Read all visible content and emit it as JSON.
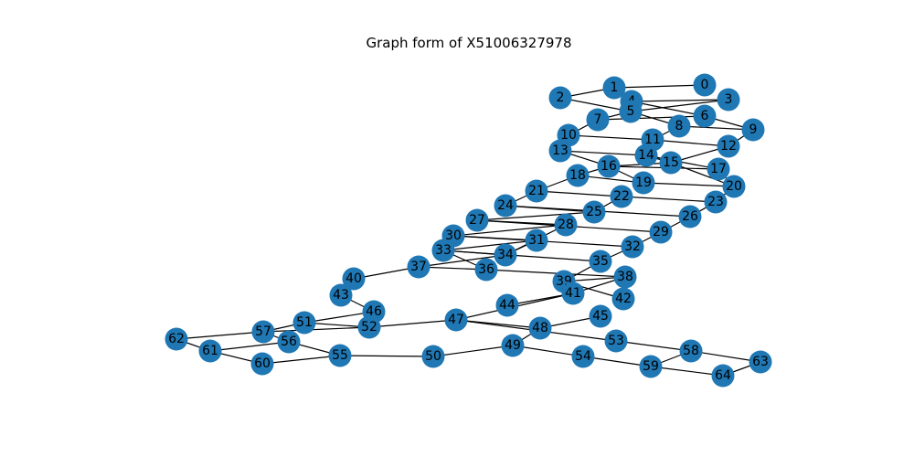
{
  "figure": {
    "title": "Graph form of X51006327978"
  },
  "graph": {
    "node_color": "#1f77b4",
    "edge_color": "#000000",
    "nodes": [
      {
        "id": "0"
      },
      {
        "id": "1"
      },
      {
        "id": "2"
      },
      {
        "id": "3"
      },
      {
        "id": "4"
      },
      {
        "id": "5"
      },
      {
        "id": "6"
      },
      {
        "id": "7"
      },
      {
        "id": "8"
      },
      {
        "id": "9"
      },
      {
        "id": "10"
      },
      {
        "id": "11"
      },
      {
        "id": "12"
      },
      {
        "id": "13"
      },
      {
        "id": "14"
      },
      {
        "id": "15"
      },
      {
        "id": "16"
      },
      {
        "id": "17"
      },
      {
        "id": "18"
      },
      {
        "id": "19"
      },
      {
        "id": "20"
      },
      {
        "id": "21"
      },
      {
        "id": "22"
      },
      {
        "id": "23"
      },
      {
        "id": "24"
      },
      {
        "id": "25"
      },
      {
        "id": "26"
      },
      {
        "id": "27"
      },
      {
        "id": "28"
      },
      {
        "id": "29"
      },
      {
        "id": "30"
      },
      {
        "id": "31"
      },
      {
        "id": "32"
      },
      {
        "id": "33"
      },
      {
        "id": "34"
      },
      {
        "id": "35"
      },
      {
        "id": "36"
      },
      {
        "id": "37"
      },
      {
        "id": "38"
      },
      {
        "id": "39"
      },
      {
        "id": "40"
      },
      {
        "id": "41"
      },
      {
        "id": "42"
      },
      {
        "id": "43"
      },
      {
        "id": "44"
      },
      {
        "id": "45"
      },
      {
        "id": "46"
      },
      {
        "id": "47"
      },
      {
        "id": "48"
      },
      {
        "id": "49"
      },
      {
        "id": "50"
      },
      {
        "id": "51"
      },
      {
        "id": "52"
      },
      {
        "id": "53"
      },
      {
        "id": "54"
      },
      {
        "id": "55"
      },
      {
        "id": "56"
      },
      {
        "id": "57"
      },
      {
        "id": "58"
      },
      {
        "id": "59"
      },
      {
        "id": "60"
      },
      {
        "id": "61"
      },
      {
        "id": "62"
      },
      {
        "id": "63"
      },
      {
        "id": "64"
      }
    ],
    "edges": [
      [
        "1",
        "0"
      ],
      [
        "1",
        "2"
      ],
      [
        "1",
        "4"
      ],
      [
        "2",
        "5"
      ],
      [
        "4",
        "3"
      ],
      [
        "5",
        "3"
      ],
      [
        "5",
        "7"
      ],
      [
        "5",
        "8"
      ],
      [
        "4",
        "6"
      ],
      [
        "7",
        "6"
      ],
      [
        "6",
        "9"
      ],
      [
        "8",
        "9"
      ],
      [
        "7",
        "10"
      ],
      [
        "10",
        "11"
      ],
      [
        "11",
        "8"
      ],
      [
        "11",
        "12"
      ],
      [
        "12",
        "9"
      ],
      [
        "10",
        "13"
      ],
      [
        "13",
        "14"
      ],
      [
        "13",
        "16"
      ],
      [
        "14",
        "17"
      ],
      [
        "15",
        "12"
      ],
      [
        "15",
        "14"
      ],
      [
        "15",
        "16"
      ],
      [
        "15",
        "20"
      ],
      [
        "16",
        "17"
      ],
      [
        "16",
        "18"
      ],
      [
        "16",
        "19"
      ],
      [
        "17",
        "20"
      ],
      [
        "18",
        "21"
      ],
      [
        "18",
        "19"
      ],
      [
        "19",
        "20"
      ],
      [
        "21",
        "22"
      ],
      [
        "21",
        "24"
      ],
      [
        "22",
        "23"
      ],
      [
        "23",
        "20"
      ],
      [
        "24",
        "25"
      ],
      [
        "24",
        "26"
      ],
      [
        "22",
        "25"
      ],
      [
        "26",
        "23"
      ],
      [
        "25",
        "27"
      ],
      [
        "27",
        "28"
      ],
      [
        "27",
        "29"
      ],
      [
        "26",
        "29"
      ],
      [
        "28",
        "30"
      ],
      [
        "28",
        "34"
      ],
      [
        "29",
        "32"
      ],
      [
        "30",
        "31"
      ],
      [
        "30",
        "32"
      ],
      [
        "31",
        "34"
      ],
      [
        "31",
        "33"
      ],
      [
        "32",
        "35"
      ],
      [
        "33",
        "35"
      ],
      [
        "33",
        "34"
      ],
      [
        "33",
        "36"
      ],
      [
        "34",
        "37"
      ],
      [
        "37",
        "36"
      ],
      [
        "37",
        "40"
      ],
      [
        "36",
        "38"
      ],
      [
        "35",
        "39"
      ],
      [
        "39",
        "38"
      ],
      [
        "39",
        "42"
      ],
      [
        "38",
        "41"
      ],
      [
        "41",
        "44"
      ],
      [
        "41",
        "47"
      ],
      [
        "43",
        "46"
      ],
      [
        "46",
        "51"
      ],
      [
        "46",
        "52"
      ],
      [
        "51",
        "52"
      ],
      [
        "51",
        "57"
      ],
      [
        "52",
        "47"
      ],
      [
        "52",
        "57"
      ],
      [
        "47",
        "53"
      ],
      [
        "47",
        "48"
      ],
      [
        "48",
        "45"
      ],
      [
        "48",
        "49"
      ],
      [
        "49",
        "50"
      ],
      [
        "49",
        "54"
      ],
      [
        "50",
        "55"
      ],
      [
        "55",
        "56"
      ],
      [
        "55",
        "60"
      ],
      [
        "56",
        "57"
      ],
      [
        "56",
        "61"
      ],
      [
        "57",
        "62"
      ],
      [
        "62",
        "61"
      ],
      [
        "61",
        "60"
      ],
      [
        "53",
        "58"
      ],
      [
        "54",
        "59"
      ],
      [
        "59",
        "58"
      ],
      [
        "58",
        "63"
      ],
      [
        "59",
        "64"
      ],
      [
        "64",
        "63"
      ]
    ]
  }
}
